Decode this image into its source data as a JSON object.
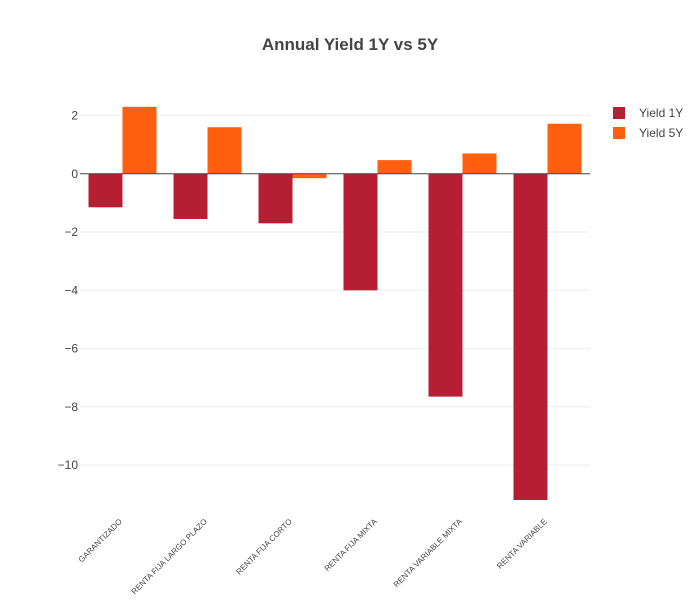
{
  "chart_data": {
    "type": "bar",
    "title": "Annual Yield 1Y vs 5Y",
    "xlabel": "",
    "ylabel": "",
    "categories": [
      "GARANTIZADO",
      "RENTA FIJA LARGO PLAZO",
      "RENTA FIJA CORTO",
      "RENTA FIJA MIXTA",
      "RENTA VARIABLE MIXTA",
      "RENTA VARIABLE"
    ],
    "series": [
      {
        "name": "Yield 1Y",
        "color": "#b61e34",
        "values": [
          -1.15,
          -1.55,
          -1.7,
          -4.0,
          -7.65,
          -11.2
        ]
      },
      {
        "name": "Yield 5Y",
        "color": "#ff5f0e",
        "values": [
          2.3,
          1.6,
          -0.15,
          0.47,
          0.7,
          1.72
        ]
      }
    ],
    "ylim": [
      -11.2,
      2.5
    ],
    "yticks": [
      2,
      0,
      -2,
      -4,
      -6,
      -8,
      -10
    ],
    "ytick_labels": [
      "2",
      "0",
      "−2",
      "−4",
      "−6",
      "−8",
      "−10"
    ],
    "grid": true,
    "legend_position": "top-right"
  }
}
